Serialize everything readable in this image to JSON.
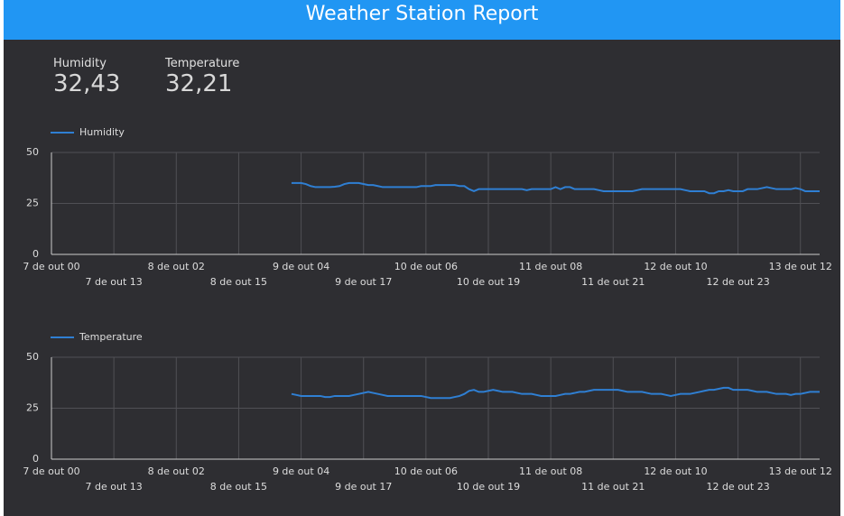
{
  "header": {
    "title": "Weather Station Report"
  },
  "scorecards": [
    {
      "label": "Humidity",
      "value": "32,43"
    },
    {
      "label": "Temperature",
      "value": "32,21"
    }
  ],
  "chart_data": [
    {
      "type": "line",
      "grid": true,
      "legend": "top-left",
      "x": [
        "7 de out 00",
        null,
        null,
        null,
        null,
        null,
        null,
        null,
        null,
        null,
        null,
        null,
        null,
        "7 de out 13",
        null,
        null,
        null,
        null,
        null,
        null,
        null,
        null,
        null,
        null,
        null,
        null,
        "8 de out 02",
        null,
        null,
        null,
        null,
        null,
        null,
        null,
        null,
        null,
        null,
        null,
        null,
        "8 de out 15",
        null,
        null,
        null,
        null,
        null,
        null,
        null,
        null,
        null,
        null,
        null,
        null,
        "9 de out 04",
        null,
        null,
        null,
        null,
        null,
        null,
        null,
        null,
        null,
        null,
        null,
        null,
        "9 de out 17",
        null,
        null,
        null,
        null,
        null,
        null,
        null,
        null,
        null,
        null,
        null,
        null,
        "10 de out 06",
        null,
        null,
        null,
        null,
        null,
        null,
        null,
        null,
        null,
        null,
        null,
        null,
        "10 de out 19",
        null,
        null,
        null,
        null,
        null,
        null,
        null,
        null,
        null,
        null,
        null,
        null,
        "11 de out 08",
        null,
        null,
        null,
        null,
        null,
        null,
        null,
        null,
        null,
        null,
        null,
        null,
        "11 de out 21",
        null,
        null,
        null,
        null,
        null,
        null,
        null,
        null,
        null,
        null,
        null,
        null,
        "12 de out 10",
        null,
        null,
        null,
        null,
        null,
        null,
        null,
        null,
        null,
        null,
        null,
        null,
        "12 de out 23",
        null,
        null,
        null,
        null,
        null,
        null,
        null,
        null,
        null,
        null,
        null,
        null,
        "13 de out 12",
        null,
        null,
        null,
        null
      ],
      "ylim": [
        0,
        50
      ],
      "yticks": [
        0,
        25,
        50
      ],
      "series": [
        {
          "name": "Humidity",
          "color": "#2f7fd3",
          "values": [
            null,
            null,
            null,
            null,
            null,
            null,
            null,
            null,
            null,
            null,
            null,
            null,
            null,
            null,
            null,
            null,
            null,
            null,
            null,
            null,
            null,
            null,
            null,
            null,
            null,
            null,
            null,
            null,
            null,
            null,
            null,
            null,
            null,
            null,
            null,
            null,
            null,
            null,
            null,
            null,
            null,
            null,
            null,
            null,
            null,
            null,
            null,
            null,
            null,
            null,
            35,
            35,
            35,
            34.5,
            33.5,
            33,
            33,
            33,
            33,
            33.2,
            33.5,
            34.5,
            35,
            35,
            35,
            34.5,
            34,
            34,
            33.5,
            33,
            33,
            33,
            33,
            33,
            33,
            33,
            33,
            33.5,
            33.5,
            33.5,
            34,
            34,
            34,
            34,
            34,
            33.5,
            33.5,
            32,
            31,
            32,
            32,
            32,
            32,
            32,
            32,
            32,
            32,
            32,
            32,
            31.5,
            32,
            32,
            32,
            32,
            32,
            33,
            32,
            33,
            33,
            32,
            32,
            32,
            32,
            32,
            31.5,
            31,
            31,
            31,
            31,
            31,
            31,
            31,
            31.5,
            32,
            32,
            32,
            32,
            32,
            32,
            32,
            32,
            32,
            31.5,
            31,
            31,
            31,
            31,
            30,
            30,
            31,
            31,
            31.5,
            31,
            31,
            31,
            32,
            32,
            32,
            32.5,
            33,
            32.5,
            32,
            32,
            32,
            32,
            32.5,
            32,
            31,
            31,
            31,
            31
          ]
        }
      ]
    },
    {
      "type": "line",
      "grid": true,
      "legend": "top-left",
      "x": [
        "7 de out 00",
        null,
        null,
        null,
        null,
        null,
        null,
        null,
        null,
        null,
        null,
        null,
        null,
        "7 de out 13",
        null,
        null,
        null,
        null,
        null,
        null,
        null,
        null,
        null,
        null,
        null,
        null,
        "8 de out 02",
        null,
        null,
        null,
        null,
        null,
        null,
        null,
        null,
        null,
        null,
        null,
        null,
        "8 de out 15",
        null,
        null,
        null,
        null,
        null,
        null,
        null,
        null,
        null,
        null,
        null,
        null,
        "9 de out 04",
        null,
        null,
        null,
        null,
        null,
        null,
        null,
        null,
        null,
        null,
        null,
        null,
        "9 de out 17",
        null,
        null,
        null,
        null,
        null,
        null,
        null,
        null,
        null,
        null,
        null,
        null,
        "10 de out 06",
        null,
        null,
        null,
        null,
        null,
        null,
        null,
        null,
        null,
        null,
        null,
        null,
        "10 de out 19",
        null,
        null,
        null,
        null,
        null,
        null,
        null,
        null,
        null,
        null,
        null,
        null,
        "11 de out 08",
        null,
        null,
        null,
        null,
        null,
        null,
        null,
        null,
        null,
        null,
        null,
        null,
        "11 de out 21",
        null,
        null,
        null,
        null,
        null,
        null,
        null,
        null,
        null,
        null,
        null,
        null,
        "12 de out 10",
        null,
        null,
        null,
        null,
        null,
        null,
        null,
        null,
        null,
        null,
        null,
        null,
        "12 de out 23",
        null,
        null,
        null,
        null,
        null,
        null,
        null,
        null,
        null,
        null,
        null,
        null,
        "13 de out 12",
        null,
        null,
        null,
        null
      ],
      "ylim": [
        0,
        50
      ],
      "yticks": [
        0,
        25,
        50
      ],
      "series": [
        {
          "name": "Temperature",
          "color": "#2f7fd3",
          "values": [
            null,
            null,
            null,
            null,
            null,
            null,
            null,
            null,
            null,
            null,
            null,
            null,
            null,
            null,
            null,
            null,
            null,
            null,
            null,
            null,
            null,
            null,
            null,
            null,
            null,
            null,
            null,
            null,
            null,
            null,
            null,
            null,
            null,
            null,
            null,
            null,
            null,
            null,
            null,
            null,
            null,
            null,
            null,
            null,
            null,
            null,
            null,
            null,
            null,
            null,
            32,
            31.5,
            31,
            31,
            31,
            31,
            31,
            30.5,
            30.5,
            31,
            31,
            31,
            31,
            31.5,
            32,
            32.5,
            33,
            32.5,
            32,
            31.5,
            31,
            31,
            31,
            31,
            31,
            31,
            31,
            31,
            30.5,
            30,
            30,
            30,
            30,
            30,
            30.5,
            31,
            32,
            33.5,
            34,
            33,
            33,
            33.5,
            34,
            33.5,
            33,
            33,
            33,
            32.5,
            32,
            32,
            32,
            31.5,
            31,
            31,
            31,
            31,
            31.5,
            32,
            32,
            32.5,
            33,
            33,
            33.5,
            34,
            34,
            34,
            34,
            34,
            34,
            33.5,
            33,
            33,
            33,
            33,
            32.5,
            32,
            32,
            32,
            31.5,
            31,
            31.5,
            32,
            32,
            32,
            32.5,
            33,
            33.5,
            34,
            34,
            34.5,
            35,
            35,
            34,
            34,
            34,
            34,
            33.5,
            33,
            33,
            33,
            32.5,
            32,
            32,
            32,
            31.5,
            32,
            32,
            32.5,
            33,
            33,
            33
          ]
        }
      ]
    }
  ]
}
